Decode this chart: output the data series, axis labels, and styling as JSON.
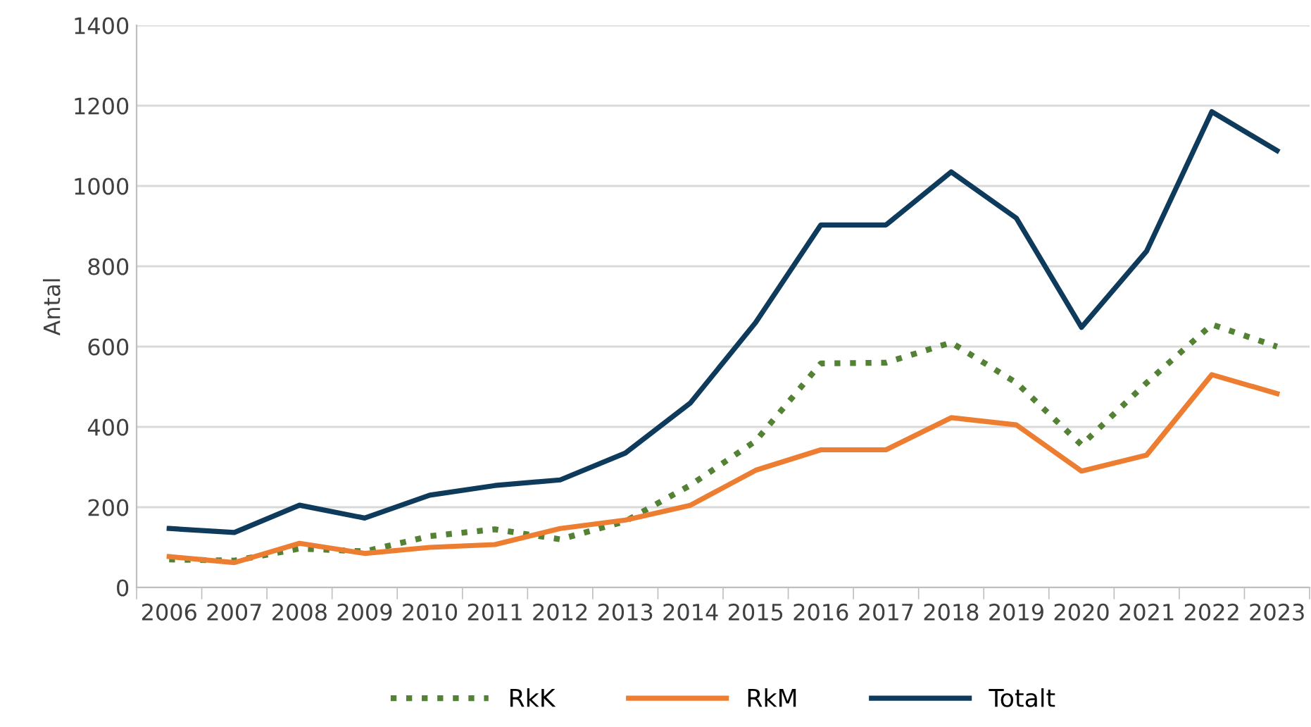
{
  "chart_data": {
    "type": "line",
    "ylabel": "Antal",
    "categories": [
      "2006",
      "2007",
      "2008",
      "2009",
      "2010",
      "2011",
      "2012",
      "2013",
      "2014",
      "2015",
      "2016",
      "2017",
      "2018",
      "2019",
      "2020",
      "2021",
      "2022",
      "2023"
    ],
    "series": [
      {
        "name": "RkK",
        "color": "#548235",
        "line_style": "dotted",
        "values": [
          70,
          67,
          97,
          90,
          128,
          145,
          120,
          165,
          255,
          365,
          558,
          560,
          610,
          510,
          355,
          510,
          655,
          600
        ]
      },
      {
        "name": "RkM",
        "color": "#ed7d31",
        "line_style": "solid",
        "values": [
          77,
          62,
          110,
          85,
          100,
          107,
          147,
          168,
          205,
          292,
          343,
          343,
          423,
          405,
          290,
          330,
          530,
          483
        ]
      },
      {
        "name": "Totalt",
        "color": "#0e3a5c",
        "line_style": "solid",
        "values": [
          147,
          137,
          205,
          173,
          230,
          254,
          268,
          335,
          460,
          660,
          903,
          903,
          1035,
          920,
          648,
          838,
          1185,
          1088
        ]
      }
    ],
    "ylim": [
      0,
      1400
    ],
    "yticks": [
      0,
      200,
      400,
      600,
      800,
      1000,
      1200,
      1400
    ],
    "grid": "y",
    "legend": "bottom",
    "marker": "none"
  }
}
